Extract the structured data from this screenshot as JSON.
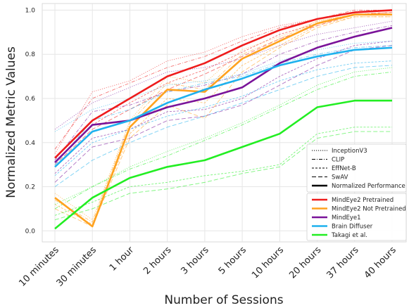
{
  "chart_data": {
    "type": "line",
    "title": "",
    "xlabel": "Number of Sessions",
    "ylabel": "Normalized Metric Values",
    "categories": [
      "10 minutes",
      "30 minutes",
      "1 hour",
      "2 hours",
      "3 hours",
      "5 hours",
      "10 hours",
      "20 hours",
      "37 hours",
      "40 hours"
    ],
    "ylim": [
      -0.05,
      1.03
    ],
    "yticks": [
      "0.0",
      "0.2",
      "0.4",
      "0.6",
      "0.8",
      "1.0"
    ],
    "grid": true,
    "legend_placement": "bottom-right",
    "line_style_legend": [
      {
        "label": "InceptionV3",
        "dash": "dotted"
      },
      {
        "label": "CLIP",
        "dash": "dashdot"
      },
      {
        "label": "EffNet-B",
        "dash": "dashed-short"
      },
      {
        "label": "SwAV",
        "dash": "dashed-long"
      },
      {
        "label": "Normalized Performance",
        "dash": "solid"
      }
    ],
    "series": [
      {
        "name": "MindEye2 Pretrained",
        "color": "#ee1c1c",
        "values": [
          0.33,
          0.5,
          0.6,
          0.7,
          0.76,
          0.84,
          0.91,
          0.96,
          0.99,
          1.0
        ],
        "metrics": {
          "InceptionV3": [
            0.35,
            0.63,
            0.68,
            0.77,
            0.81,
            0.88,
            0.93,
            0.96,
            0.99,
            1.0
          ],
          "CLIP": [
            0.37,
            0.6,
            0.67,
            0.74,
            0.79,
            0.86,
            0.92,
            0.96,
            1.0,
            1.0
          ],
          "EffNet-B": [
            0.31,
            0.48,
            0.58,
            0.67,
            0.73,
            0.81,
            0.89,
            0.94,
            0.98,
            0.99
          ],
          "SwAV": [
            0.3,
            0.46,
            0.55,
            0.64,
            0.71,
            0.79,
            0.87,
            0.93,
            0.98,
            0.99
          ]
        }
      },
      {
        "name": "MindEye2 Not Pretrained",
        "color": "#ffa21f",
        "values": [
          0.15,
          0.02,
          0.47,
          0.64,
          0.63,
          0.78,
          0.86,
          0.94,
          0.98,
          0.98
        ],
        "metrics": {
          "InceptionV3": [
            0.17,
            0.05,
            0.5,
            0.7,
            0.67,
            0.82,
            0.88,
            0.95,
            0.98,
            0.99
          ],
          "CLIP": [
            0.14,
            0.04,
            0.49,
            0.67,
            0.64,
            0.8,
            0.87,
            0.95,
            0.98,
            0.98
          ],
          "EffNet-B": [
            0.12,
            0.03,
            0.44,
            0.6,
            0.58,
            0.75,
            0.84,
            0.93,
            0.97,
            0.97
          ],
          "SwAV": [
            0.1,
            0.02,
            0.42,
            0.57,
            0.51,
            0.72,
            0.83,
            0.92,
            0.97,
            0.97
          ]
        }
      },
      {
        "name": "MindEye1",
        "color": "#7a1399",
        "values": [
          0.31,
          0.48,
          0.5,
          0.56,
          0.6,
          0.65,
          0.76,
          0.83,
          0.88,
          0.92
        ],
        "metrics": {
          "InceptionV3": [
            0.46,
            0.58,
            0.65,
            0.72,
            0.74,
            0.78,
            0.84,
            0.89,
            0.92,
            0.95
          ],
          "CLIP": [
            0.32,
            0.54,
            0.57,
            0.63,
            0.66,
            0.71,
            0.8,
            0.86,
            0.9,
            0.93
          ],
          "EffNet-B": [
            0.26,
            0.42,
            0.46,
            0.54,
            0.55,
            0.6,
            0.7,
            0.78,
            0.84,
            0.86
          ],
          "SwAV": [
            0.22,
            0.38,
            0.42,
            0.5,
            0.52,
            0.57,
            0.66,
            0.75,
            0.82,
            0.84
          ]
        }
      },
      {
        "name": "Brain Diffuser",
        "color": "#1eb1ee",
        "values": [
          0.29,
          0.45,
          0.5,
          0.58,
          0.64,
          0.69,
          0.75,
          0.79,
          0.82,
          0.83
        ],
        "metrics": {
          "InceptionV3": [
            0.45,
            0.55,
            0.6,
            0.66,
            0.68,
            0.71,
            0.77,
            0.82,
            0.85,
            0.86
          ],
          "CLIP": [
            0.3,
            0.5,
            0.55,
            0.63,
            0.67,
            0.7,
            0.76,
            0.8,
            0.83,
            0.84
          ],
          "EffNet-B": [
            0.25,
            0.4,
            0.46,
            0.52,
            0.56,
            0.61,
            0.68,
            0.73,
            0.76,
            0.77
          ],
          "SwAV": [
            0.2,
            0.32,
            0.4,
            0.47,
            0.52,
            0.58,
            0.64,
            0.7,
            0.74,
            0.75
          ]
        }
      },
      {
        "name": "Takagi et al.",
        "color": "#22ee22",
        "values": [
          0.01,
          0.15,
          0.24,
          0.29,
          0.32,
          0.38,
          0.44,
          0.56,
          0.59,
          0.59
        ],
        "metrics": {
          "InceptionV3": [
            0.12,
            0.2,
            0.29,
            0.36,
            0.42,
            0.49,
            0.57,
            0.66,
            0.72,
            0.74
          ],
          "CLIP": [
            0.1,
            0.2,
            0.28,
            0.34,
            0.41,
            0.48,
            0.56,
            0.64,
            0.7,
            0.72
          ],
          "EffNet-B": [
            0.07,
            0.13,
            0.2,
            0.22,
            0.25,
            0.27,
            0.3,
            0.44,
            0.47,
            0.47
          ],
          "SwAV": [
            0.05,
            0.1,
            0.17,
            0.19,
            0.22,
            0.26,
            0.29,
            0.42,
            0.45,
            0.45
          ]
        }
      }
    ]
  }
}
